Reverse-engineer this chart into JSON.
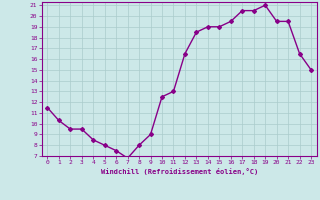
{
  "x": [
    0,
    1,
    2,
    3,
    4,
    5,
    6,
    7,
    8,
    9,
    10,
    11,
    12,
    13,
    14,
    15,
    16,
    17,
    18,
    19,
    20,
    21,
    22,
    23
  ],
  "y": [
    11.5,
    10.3,
    9.5,
    9.5,
    8.5,
    8.0,
    7.5,
    6.8,
    8.0,
    9.0,
    12.5,
    13.0,
    16.5,
    18.5,
    19.0,
    19.0,
    19.5,
    20.5,
    20.5,
    21.0,
    19.5,
    19.5,
    16.5,
    15.0
  ],
  "ylim": [
    7,
    21
  ],
  "xlim": [
    -0.5,
    23.5
  ],
  "yticks": [
    7,
    8,
    9,
    10,
    11,
    12,
    13,
    14,
    15,
    16,
    17,
    18,
    19,
    20,
    21
  ],
  "xticks": [
    0,
    1,
    2,
    3,
    4,
    5,
    6,
    7,
    8,
    9,
    10,
    11,
    12,
    13,
    14,
    15,
    16,
    17,
    18,
    19,
    20,
    21,
    22,
    23
  ],
  "xlabel": "Windchill (Refroidissement éolien,°C)",
  "line_color": "#880088",
  "marker": "D",
  "bg_color": "#cce8e8",
  "grid_color": "#aacccc",
  "tick_label_color": "#880088",
  "xlabel_color": "#880088",
  "marker_size": 2,
  "line_width": 1
}
